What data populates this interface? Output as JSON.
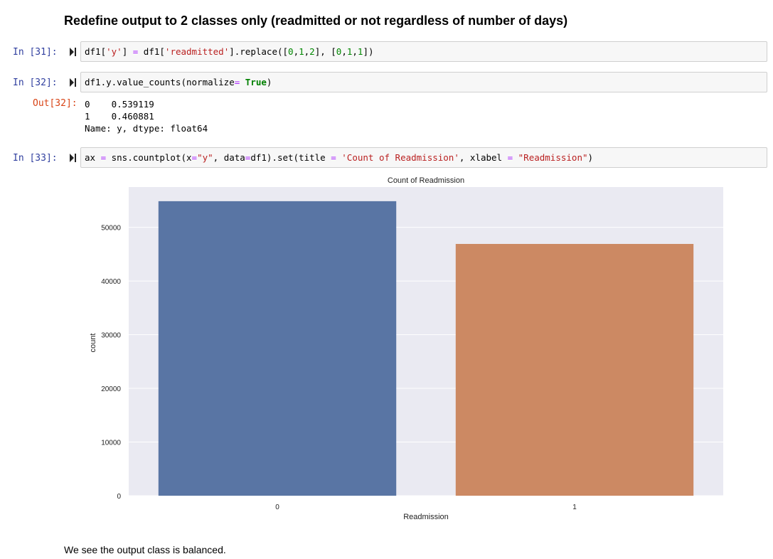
{
  "heading": "Redefine output to 2 classes only (readmitted or not regardless of number of days)",
  "cells": [
    {
      "prompt": "In [31]:",
      "code": [
        {
          "t": "df1[",
          "c": ""
        },
        {
          "t": "'y'",
          "c": "s"
        },
        {
          "t": "] ",
          "c": ""
        },
        {
          "t": "=",
          "c": "o"
        },
        {
          "t": " df1[",
          "c": ""
        },
        {
          "t": "'readmitted'",
          "c": "s"
        },
        {
          "t": "].replace([",
          "c": ""
        },
        {
          "t": "0",
          "c": "n"
        },
        {
          "t": ",",
          "c": ""
        },
        {
          "t": "1",
          "c": "n"
        },
        {
          "t": ",",
          "c": ""
        },
        {
          "t": "2",
          "c": "n"
        },
        {
          "t": "], [",
          "c": ""
        },
        {
          "t": "0",
          "c": "n"
        },
        {
          "t": ",",
          "c": ""
        },
        {
          "t": "1",
          "c": "n"
        },
        {
          "t": ",",
          "c": ""
        },
        {
          "t": "1",
          "c": "n"
        },
        {
          "t": "])",
          "c": ""
        }
      ]
    },
    {
      "prompt": "In [32]:",
      "code": [
        {
          "t": "df1.y.value_counts(normalize",
          "c": ""
        },
        {
          "t": "=",
          "c": "o"
        },
        {
          "t": " ",
          "c": ""
        },
        {
          "t": "True",
          "c": "k"
        },
        {
          "t": ")",
          "c": ""
        }
      ]
    },
    {
      "prompt": "In [33]:",
      "code": [
        {
          "t": "ax ",
          "c": ""
        },
        {
          "t": "=",
          "c": "o"
        },
        {
          "t": " sns.countplot(x",
          "c": ""
        },
        {
          "t": "=",
          "c": "o"
        },
        {
          "t": "\"y\"",
          "c": "s"
        },
        {
          "t": ", data",
          "c": ""
        },
        {
          "t": "=",
          "c": "o"
        },
        {
          "t": "df1).set(title ",
          "c": ""
        },
        {
          "t": "=",
          "c": "o"
        },
        {
          "t": " ",
          "c": ""
        },
        {
          "t": "'Count of Readmission'",
          "c": "s"
        },
        {
          "t": ", xlabel ",
          "c": ""
        },
        {
          "t": "=",
          "c": "o"
        },
        {
          "t": " ",
          "c": ""
        },
        {
          "t": "\"Readmission\"",
          "c": "s"
        },
        {
          "t": ")",
          "c": ""
        }
      ]
    }
  ],
  "output32": {
    "prompt": "Out[32]:",
    "text": "0    0.539119\n1    0.460881\nName: y, dtype: float64"
  },
  "chart_data": {
    "type": "bar",
    "title": "Count of Readmission",
    "xlabel": "Readmission",
    "ylabel": "count",
    "categories": [
      "0",
      "1"
    ],
    "values": [
      54864,
      46902
    ],
    "ylim": [
      0,
      57500
    ],
    "yticks": [
      0,
      10000,
      20000,
      30000,
      40000,
      50000
    ],
    "colors": [
      "#5975a4",
      "#cc8963"
    ],
    "background": "#eaeaf2",
    "grid": true
  },
  "conclusion": "We see the output class is balanced."
}
